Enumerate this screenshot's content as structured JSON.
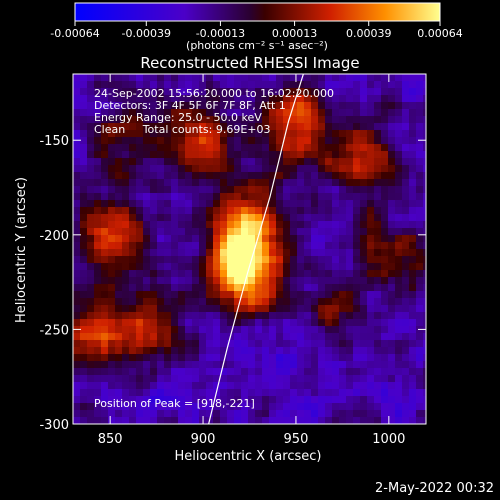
{
  "chart_data": {
    "type": "heatmap",
    "title": "Reconstructed RHESSI Image",
    "xlabel": "Heliocentric X (arcsec)",
    "ylabel": "Heliocentric Y (arcsec)",
    "xlim": [
      830,
      1020
    ],
    "ylim": [
      -300,
      -115
    ],
    "xticks": [
      850,
      900,
      950,
      1000
    ],
    "yticks": [
      -150,
      -200,
      -250,
      -300
    ],
    "colorbar": {
      "min": -0.00064,
      "max": 0.00064,
      "ticks": [
        "-0.00064",
        "-0.00039",
        "-0.00013",
        "0.00013",
        "0.00039",
        "0.00064"
      ],
      "label": "(photons cm⁻² s⁻¹ asec⁻²)"
    },
    "annotations": [
      "24-Sep-2002 15:56:20.000 to 16:02:20.000",
      "Detectors: 3F 4F 5F 6F 7F 8F, Att 1",
      "Energy Range: 25.0 - 50.0 keV",
      "Clean     Total counts: 9.69E+03"
    ],
    "peak_label": "Position of Peak = [918,-221]",
    "peak": [
      918,
      -221
    ],
    "limb_curve": {
      "x": [
        903,
        913,
        924,
        936,
        946,
        954
      ],
      "y": [
        -300,
        -260,
        -220,
        -180,
        -140,
        -115
      ]
    },
    "sources": [
      {
        "x": 920,
        "y": -220,
        "amp": 1.0
      },
      {
        "x": 925,
        "y": -195,
        "amp": 0.7
      },
      {
        "x": 850,
        "y": -200,
        "amp": 0.6
      },
      {
        "x": 842,
        "y": -250,
        "amp": 0.55
      },
      {
        "x": 870,
        "y": -248,
        "amp": 0.45
      },
      {
        "x": 900,
        "y": -150,
        "amp": 0.55
      },
      {
        "x": 950,
        "y": -140,
        "amp": 0.6
      },
      {
        "x": 985,
        "y": -160,
        "amp": 0.45
      },
      {
        "x": 1000,
        "y": -210,
        "amp": 0.4
      },
      {
        "x": 970,
        "y": -240,
        "amp": 0.3
      },
      {
        "x": 860,
        "y": -150,
        "amp": 0.35
      }
    ],
    "colors": {
      "negative": "#0000ff",
      "zero": "#2a0040",
      "positive_low": "#c00000",
      "positive_high": "#ffff80"
    }
  },
  "footer": {
    "timestamp": "2-May-2022 00:32"
  }
}
